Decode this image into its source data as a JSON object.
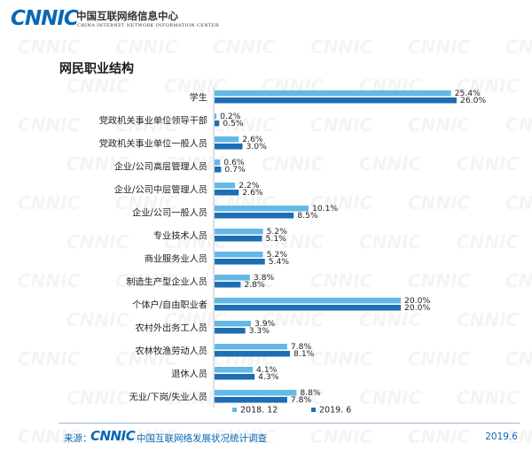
{
  "header": {
    "logo_text": "CNNIC",
    "org_name_cn": "中国互联网络信息中心",
    "org_name_en": "CHINA INTERNET NETWORK INFORMATION CENTER"
  },
  "watermark_text": "CNNIC",
  "chart_title": "网民职业结构",
  "colors": {
    "series_2018": "#63b8e6",
    "series_2019": "#1d6eb4",
    "brand": "#0b67b3"
  },
  "chart_data": {
    "type": "bar",
    "orientation": "horizontal",
    "title": "网民职业结构",
    "categories": [
      "学生",
      "党政机关事业单位领导干部",
      "党政机关事业单位一般人员",
      "企业/公司高层管理人员",
      "企业/公司中层管理人员",
      "企业/公司一般人员",
      "专业技术人员",
      "商业服务业人员",
      "制造生产型企业人员",
      "个体户/自由职业者",
      "农村外出务工人员",
      "农林牧渔劳动人员",
      "退休人员",
      "无业/下岗/失业人员"
    ],
    "series": [
      {
        "name": "2018. 12",
        "values": [
          25.4,
          0.2,
          2.6,
          0.6,
          2.2,
          10.1,
          5.2,
          5.2,
          3.8,
          20.0,
          3.9,
          7.8,
          4.1,
          8.8
        ]
      },
      {
        "name": "2019. 6",
        "values": [
          26.0,
          0.5,
          3.0,
          0.7,
          2.6,
          8.5,
          5.1,
          5.4,
          2.8,
          20.0,
          3.3,
          8.1,
          4.3,
          7.8
        ]
      }
    ],
    "value_suffix": "%",
    "xlim": [
      0,
      28
    ],
    "grid": false,
    "legend_position": "bottom"
  },
  "footer": {
    "source_label": "来源：",
    "source_logo": "CNNIC",
    "source_text": "中国互联网络发展状况统计调查",
    "date": "2019.6"
  }
}
